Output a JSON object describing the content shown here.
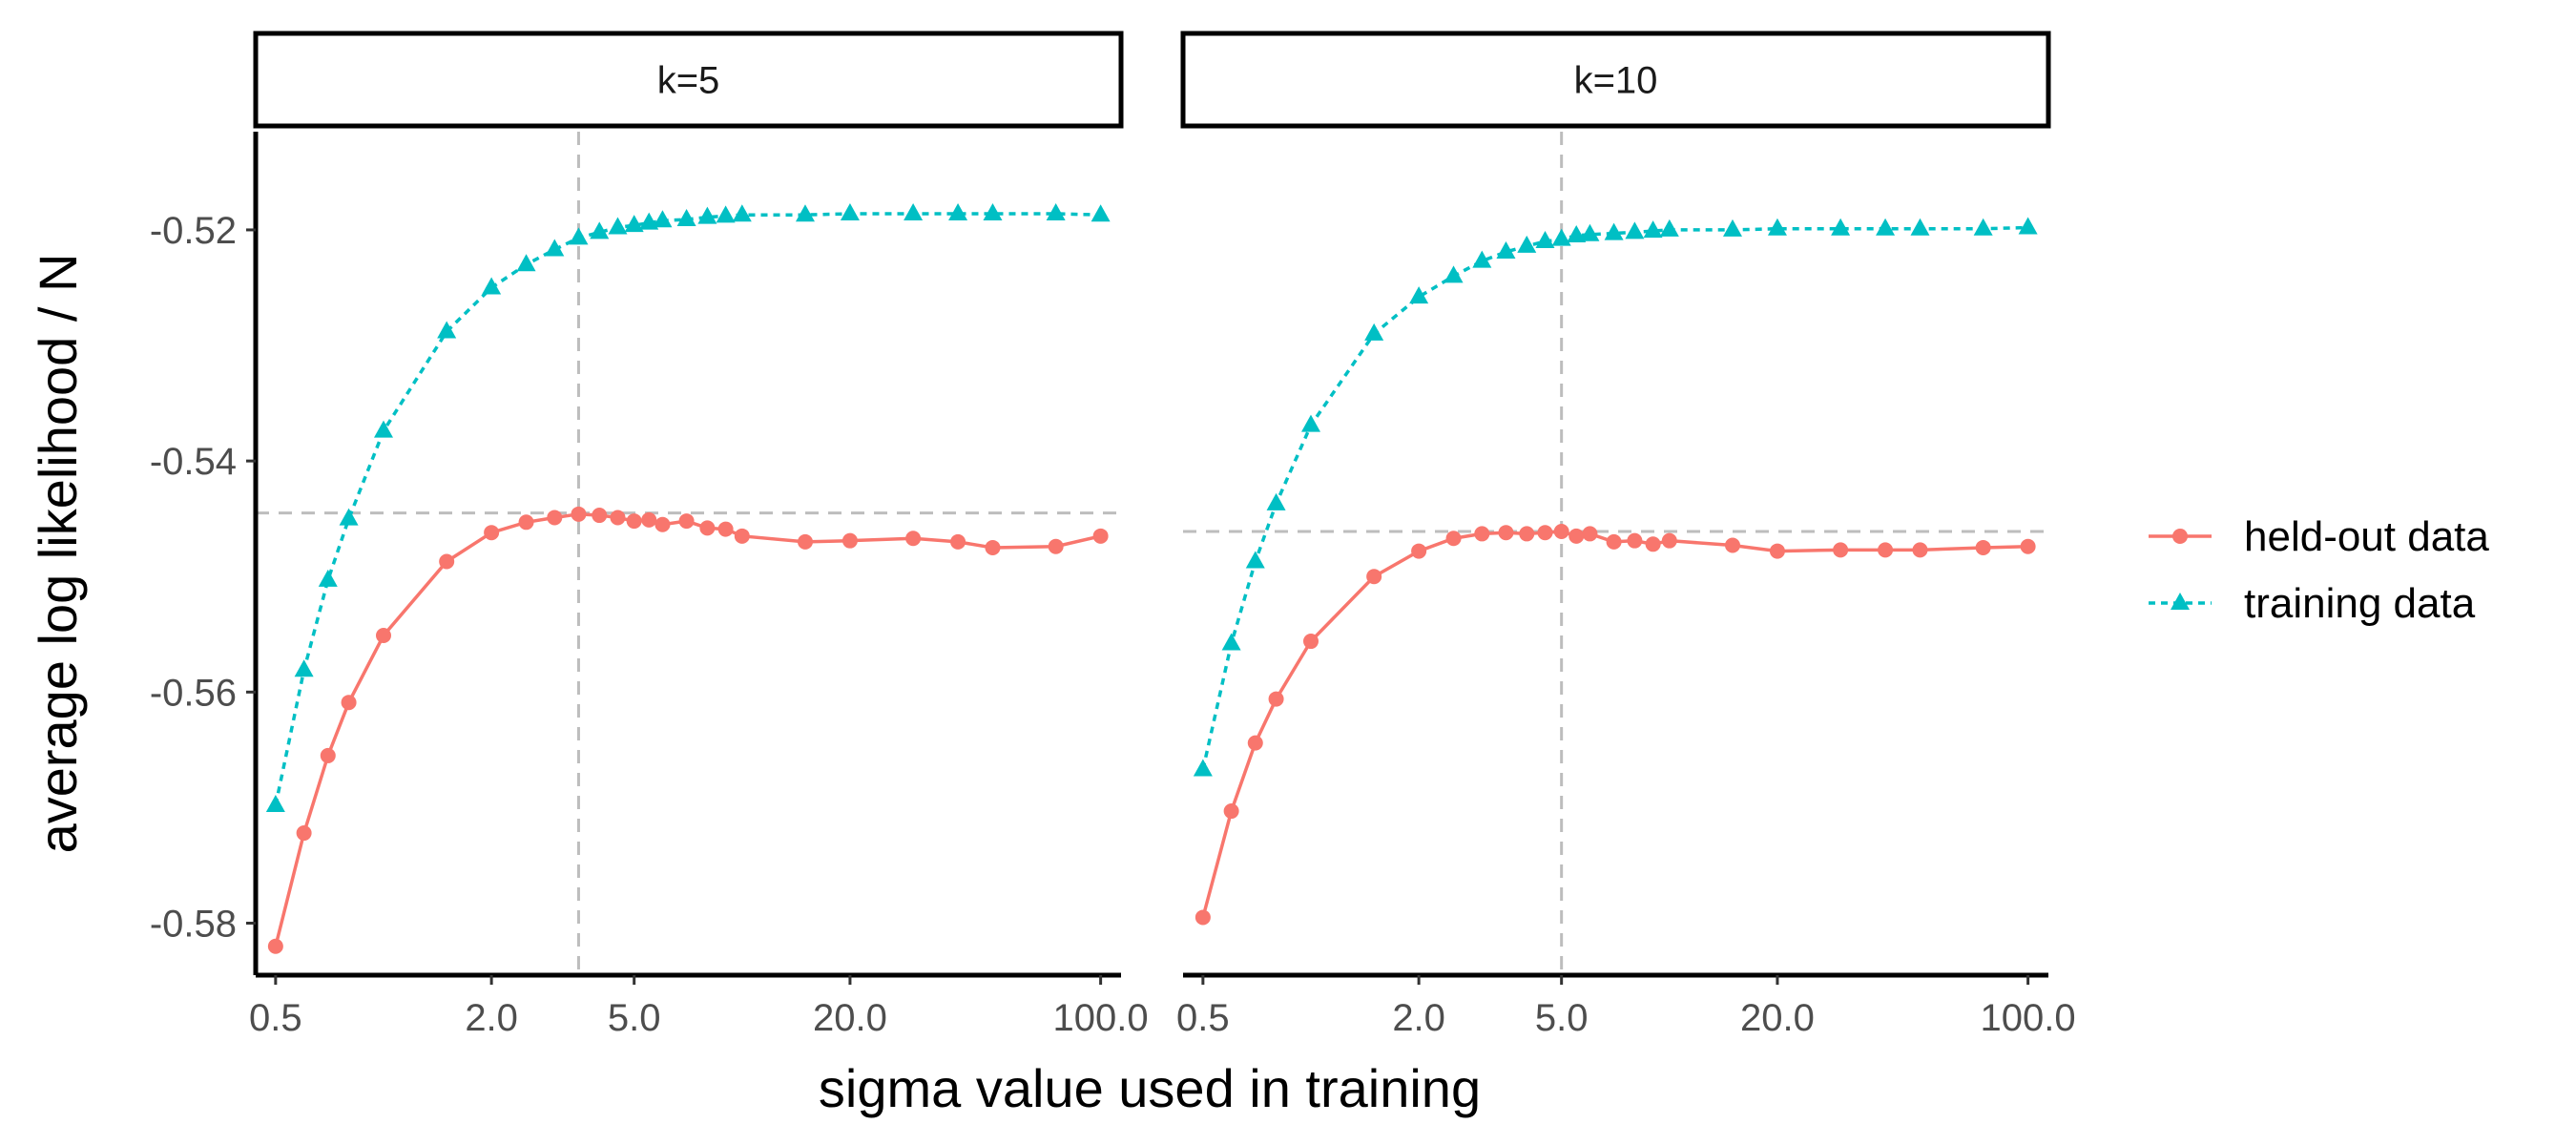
{
  "chart_data": {
    "type": "line",
    "xscale": "log",
    "xlabel": "sigma value used in training",
    "ylabel": "average log likelihood / N",
    "xlim": [
      0.44,
      114
    ],
    "ylim": [
      -0.5845,
      -0.5115
    ],
    "x_ticks": [
      {
        "value": 0.5,
        "label": "0.5"
      },
      {
        "value": 2.0,
        "label": "2.0"
      },
      {
        "value": 5.0,
        "label": "5.0"
      },
      {
        "value": 20.0,
        "label": "20.0"
      },
      {
        "value": 100.0,
        "label": "100.0"
      }
    ],
    "y_ticks": [
      {
        "value": -0.52,
        "label": "-0.52"
      },
      {
        "value": -0.54,
        "label": "-0.54"
      },
      {
        "value": -0.56,
        "label": "-0.56"
      },
      {
        "value": -0.58,
        "label": "-0.58"
      }
    ],
    "legend": [
      {
        "key": "held",
        "label": "held-out data",
        "color": "#F8766D",
        "marker": "circle",
        "dash": "solid"
      },
      {
        "key": "train",
        "label": "training data",
        "color": "#00BFC4",
        "marker": "triangle",
        "dash": "dotted"
      }
    ],
    "panels": [
      {
        "strip": "k=5",
        "ref_x": 3.5,
        "ref_y": -0.5445,
        "series": [
          {
            "name": "held-out data",
            "x": [
              0.5,
              0.6,
              0.7,
              0.8,
              1.0,
              1.5,
              2.0,
              2.5,
              3.0,
              3.5,
              4.0,
              4.5,
              5.0,
              5.5,
              6.0,
              7.0,
              8.0,
              9.0,
              10.0,
              15.0,
              20.0,
              30.0,
              40.0,
              50.0,
              75.0,
              100.0
            ],
            "y": [
              -0.582,
              -0.5722,
              -0.5655,
              -0.5609,
              -0.5551,
              -0.5487,
              -0.5462,
              -0.5453,
              -0.5449,
              -0.5446,
              -0.5447,
              -0.5449,
              -0.5452,
              -0.5451,
              -0.5455,
              -0.5452,
              -0.5458,
              -0.5459,
              -0.5465,
              -0.547,
              -0.5469,
              -0.5467,
              -0.547,
              -0.5475,
              -0.5474,
              -0.5465
            ]
          },
          {
            "name": "training data",
            "x": [
              0.5,
              0.6,
              0.7,
              0.8,
              1.0,
              1.5,
              2.0,
              2.5,
              3.0,
              3.5,
              4.0,
              4.5,
              5.0,
              5.5,
              6.0,
              7.0,
              8.0,
              9.0,
              10.0,
              15.0,
              20.0,
              30.0,
              40.0,
              50.0,
              75.0,
              100.0
            ],
            "y": [
              -0.5698,
              -0.5581,
              -0.5503,
              -0.545,
              -0.5374,
              -0.5288,
              -0.525,
              -0.523,
              -0.5217,
              -0.5207,
              -0.5202,
              -0.5198,
              -0.5196,
              -0.5194,
              -0.5192,
              -0.5191,
              -0.5189,
              -0.5188,
              -0.5187,
              -0.5187,
              -0.5186,
              -0.5186,
              -0.5186,
              -0.5186,
              -0.5186,
              -0.5187
            ]
          }
        ]
      },
      {
        "strip": "k=10",
        "ref_x": 5.0,
        "ref_y": -0.5461,
        "series": [
          {
            "name": "held-out data",
            "x": [
              0.5,
              0.6,
              0.7,
              0.8,
              1.0,
              1.5,
              2.0,
              2.5,
              3.0,
              3.5,
              4.0,
              4.5,
              5.0,
              5.5,
              6.0,
              7.0,
              8.0,
              9.0,
              10.0,
              15.0,
              20.0,
              30.0,
              40.0,
              50.0,
              75.0,
              100.0
            ],
            "y": [
              -0.5795,
              -0.5703,
              -0.5644,
              -0.5606,
              -0.5556,
              -0.55,
              -0.5478,
              -0.5467,
              -0.5463,
              -0.5462,
              -0.5463,
              -0.5462,
              -0.5461,
              -0.5465,
              -0.5463,
              -0.547,
              -0.5469,
              -0.5472,
              -0.5469,
              -0.5473,
              -0.5478,
              -0.5477,
              -0.5477,
              -0.5477,
              -0.5475,
              -0.5474
            ]
          },
          {
            "name": "training data",
            "x": [
              0.5,
              0.6,
              0.7,
              0.8,
              1.0,
              1.5,
              2.0,
              2.5,
              3.0,
              3.5,
              4.0,
              4.5,
              5.0,
              5.5,
              6.0,
              7.0,
              8.0,
              9.0,
              10.0,
              15.0,
              20.0,
              30.0,
              40.0,
              50.0,
              75.0,
              100.0
            ],
            "y": [
              -0.5667,
              -0.5558,
              -0.5487,
              -0.5437,
              -0.5369,
              -0.529,
              -0.5258,
              -0.524,
              -0.5227,
              -0.5219,
              -0.5214,
              -0.521,
              -0.5208,
              -0.5205,
              -0.5204,
              -0.5203,
              -0.5202,
              -0.5201,
              -0.52,
              -0.52,
              -0.5199,
              -0.5199,
              -0.5199,
              -0.5199,
              -0.5199,
              -0.5198
            ]
          }
        ]
      }
    ]
  }
}
